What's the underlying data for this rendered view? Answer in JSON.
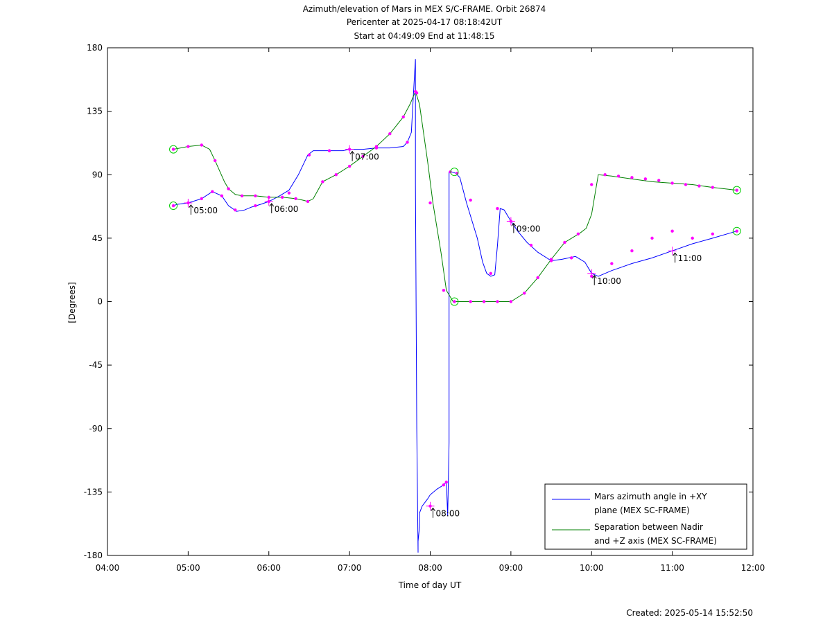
{
  "chart_data": {
    "type": "line",
    "title_lines": [
      "Azimuth/elevation of Mars in MEX S/C-FRAME.  Orbit 26874",
      "Pericenter at 2025-04-17 08:18:42UT",
      "Start at 04:49:09 End at 11:48:15"
    ],
    "xlabel": "Time of day UT",
    "ylabel": "[Degrees]",
    "xlim": [
      "04:00",
      "12:00"
    ],
    "ylim": [
      -180,
      180
    ],
    "xticks": [
      "04:00",
      "05:00",
      "06:00",
      "07:00",
      "08:00",
      "09:00",
      "10:00",
      "11:00",
      "12:00"
    ],
    "yticks": [
      180,
      135,
      90,
      45,
      0,
      -45,
      -90,
      -135,
      -180
    ],
    "legend_position": "bottom-right",
    "series": [
      {
        "name": "Mars azimuth angle in +XY plane (MEX SC-FRAME)",
        "legend_lines": [
          "Mars azimuth angle in +XY",
          "plane (MEX SC-FRAME)"
        ],
        "color": "#0000ff",
        "x": [
          "04:49",
          "04:52",
          "05:00",
          "05:10",
          "05:18",
          "05:25",
          "05:30",
          "05:36",
          "05:42",
          "05:47",
          "05:54",
          "06:00",
          "06:08",
          "06:15",
          "06:22",
          "06:29",
          "06:33",
          "06:36",
          "06:44",
          "06:55",
          "07:00",
          "07:10",
          "07:20",
          "07:30",
          "07:40",
          "07:43",
          "07:46",
          "07:48",
          "07:49",
          "07:49",
          "07:50",
          "07:51",
          "07:51",
          "07:52",
          "07:52",
          "07:54",
          "07:58",
          "08:00",
          "08:05",
          "08:10",
          "08:12",
          "08:12",
          "08:13",
          "08:14",
          "08:14",
          "08:15",
          "08:16",
          "08:19",
          "08:22",
          "08:27",
          "08:35",
          "08:39",
          "08:42",
          "08:45",
          "08:48",
          "08:50",
          "08:52",
          "08:55",
          "09:00",
          "09:05",
          "09:12",
          "09:20",
          "09:30",
          "09:38",
          "09:48",
          "09:55",
          "10:00",
          "10:05",
          "10:15",
          "10:30",
          "10:45",
          "11:00",
          "11:15",
          "11:30",
          "11:48"
        ],
        "values": [
          68,
          69,
          70,
          73,
          78,
          75,
          68,
          64,
          65,
          67,
          69,
          71,
          75,
          79,
          90,
          104,
          107,
          107,
          107,
          107,
          108,
          108,
          109,
          109,
          110,
          113,
          120,
          155,
          172,
          84,
          -90,
          -178,
          -170,
          -160,
          -150,
          -145,
          -140,
          -137,
          -133,
          -130,
          -128,
          -128,
          -152,
          -100,
          92,
          92,
          92,
          91,
          88,
          70,
          45,
          28,
          20,
          18,
          19,
          40,
          66,
          65,
          57,
          50,
          42,
          35,
          29,
          30,
          32,
          28,
          20,
          18,
          22,
          27,
          31,
          36,
          41,
          45,
          50
        ],
        "markers_x": [
          "04:49",
          "05:00",
          "05:10",
          "05:18",
          "05:25",
          "05:35",
          "05:50",
          "06:00",
          "06:15",
          "06:30",
          "06:45",
          "07:00",
          "07:20",
          "07:43",
          "07:50",
          "08:00",
          "08:10",
          "08:12",
          "08:15",
          "08:20",
          "08:30",
          "08:45",
          "08:50",
          "09:00",
          "09:15",
          "09:30",
          "09:45",
          "10:00",
          "10:15",
          "10:30",
          "10:45",
          "11:00",
          "11:15",
          "11:30",
          "11:48"
        ],
        "markers_y": [
          68,
          70,
          73,
          78,
          75,
          65,
          68,
          71,
          77,
          104,
          107,
          108,
          109,
          113,
          148,
          -145,
          -130,
          -128,
          92,
          91,
          72,
          20,
          66,
          57,
          40,
          29,
          31,
          18,
          27,
          36,
          45,
          50,
          45,
          48,
          50
        ]
      },
      {
        "name": "Separation between Nadir and +Z axis (MEX SC-FRAME)",
        "legend_lines": [
          "Separation between Nadir",
          "and +Z axis (MEX SC-FRAME)"
        ],
        "color": "#008000",
        "x": [
          "04:49",
          "05:00",
          "05:10",
          "05:16",
          "05:20",
          "05:27",
          "05:30",
          "05:35",
          "05:40",
          "05:50",
          "06:00",
          "06:10",
          "06:20",
          "06:25",
          "06:29",
          "06:33",
          "06:40",
          "06:50",
          "07:00",
          "07:10",
          "07:20",
          "07:30",
          "07:40",
          "07:45",
          "07:49",
          "07:52",
          "07:58",
          "08:02",
          "08:08",
          "08:12",
          "08:17",
          "08:20",
          "08:30",
          "08:45",
          "09:00",
          "09:10",
          "09:20",
          "09:30",
          "09:40",
          "09:47",
          "09:52",
          "09:56",
          "10:00",
          "10:05",
          "10:15",
          "10:30",
          "10:45",
          "11:00",
          "11:15",
          "11:30",
          "11:48"
        ],
        "values": [
          108,
          110,
          111,
          108,
          100,
          85,
          80,
          76,
          75,
          75,
          74,
          74,
          73,
          72,
          71,
          73,
          85,
          90,
          96,
          103,
          110,
          119,
          131,
          140,
          149,
          140,
          100,
          70,
          35,
          8,
          0,
          0,
          0,
          0,
          0,
          6,
          17,
          30,
          42,
          46,
          49,
          52,
          62,
          90,
          89,
          87,
          85,
          84,
          83,
          81,
          79
        ],
        "markers_x": [
          "04:49",
          "05:00",
          "05:10",
          "05:20",
          "05:30",
          "05:40",
          "05:50",
          "06:00",
          "06:10",
          "06:20",
          "06:29",
          "06:40",
          "06:50",
          "07:00",
          "07:10",
          "07:20",
          "07:30",
          "07:40",
          "07:49",
          "08:00",
          "08:10",
          "08:18",
          "08:30",
          "08:40",
          "08:50",
          "09:00",
          "09:10",
          "09:20",
          "09:30",
          "09:40",
          "09:50",
          "10:00",
          "10:10",
          "10:20",
          "10:30",
          "10:40",
          "10:50",
          "11:00",
          "11:10",
          "11:20",
          "11:30",
          "11:48"
        ],
        "markers_y": [
          108,
          110,
          111,
          100,
          80,
          75,
          75,
          74,
          74,
          73,
          71,
          85,
          90,
          96,
          103,
          110,
          119,
          131,
          149,
          70,
          8,
          0,
          0,
          0,
          0,
          0,
          6,
          17,
          30,
          42,
          48,
          83,
          90,
          89,
          88,
          87,
          86,
          84,
          83,
          82,
          81,
          79
        ]
      }
    ],
    "event_circles": [
      {
        "x": "04:49",
        "y": 108
      },
      {
        "x": "04:49",
        "y": 68
      },
      {
        "x": "08:18",
        "y": 92
      },
      {
        "x": "08:18",
        "y": 0
      },
      {
        "x": "11:48",
        "y": 79
      },
      {
        "x": "11:48",
        "y": 50
      }
    ],
    "hour_annotations": [
      {
        "label": "05:00",
        "x": "05:00",
        "y": 70
      },
      {
        "label": "06:00",
        "x": "06:00",
        "y": 71
      },
      {
        "label": "07:00",
        "x": "07:00",
        "y": 108
      },
      {
        "label": "08:00",
        "x": "08:00",
        "y": -145
      },
      {
        "label": "09:00",
        "x": "09:00",
        "y": 57
      },
      {
        "label": "10:00",
        "x": "10:00",
        "y": 20
      },
      {
        "label": "11:00",
        "x": "11:00",
        "y": 36
      }
    ],
    "footer": "Created: 2025-05-14 15:52:50"
  }
}
